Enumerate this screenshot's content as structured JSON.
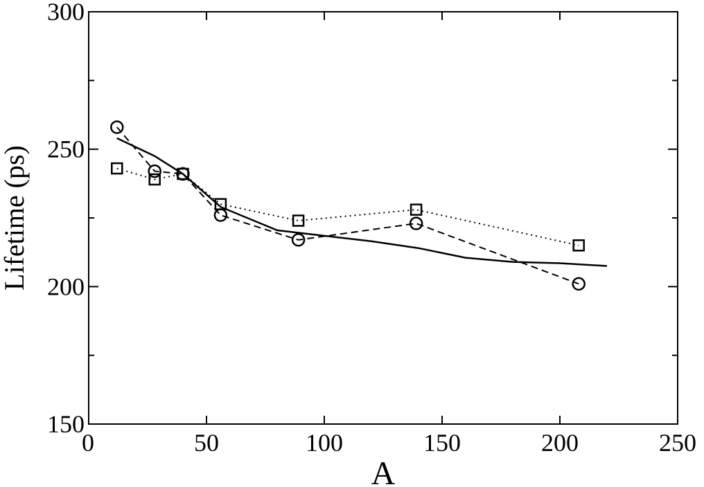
{
  "chart_data": {
    "type": "line",
    "xlabel": "A",
    "ylabel": "Lifetime (ps)",
    "xlim": [
      0,
      250
    ],
    "ylim": [
      150,
      300
    ],
    "grid": false,
    "x_ticks": [
      0,
      50,
      100,
      150,
      200,
      250
    ],
    "x_tick_labels": [
      "0",
      "50",
      "100",
      "150",
      "200",
      "250"
    ],
    "y_ticks": [
      150,
      200,
      250,
      300
    ],
    "y_tick_labels": [
      "150",
      "200",
      "250",
      "300"
    ],
    "y_minor_ticks": [
      175,
      225,
      275
    ],
    "series": [
      {
        "style": "solid",
        "marker": "none",
        "color": "#000000",
        "x": [
          12,
          28,
          40,
          56,
          80,
          100,
          120,
          140,
          160,
          180,
          200,
          220
        ],
        "y": [
          254,
          247.5,
          241,
          229,
          220.5,
          218.5,
          216.5,
          214,
          210.5,
          209,
          208.5,
          207.5
        ]
      },
      {
        "style": "dashed",
        "marker": "circle",
        "color": "#000000",
        "x": [
          12,
          28,
          40,
          56,
          89,
          139,
          208
        ],
        "y": [
          258,
          242,
          241,
          226,
          217,
          223,
          201
        ]
      },
      {
        "style": "dotted",
        "marker": "square",
        "color": "#000000",
        "x": [
          12,
          28,
          40,
          56,
          89,
          139,
          208
        ],
        "y": [
          243,
          239,
          241,
          230,
          224,
          228,
          215
        ]
      }
    ]
  }
}
